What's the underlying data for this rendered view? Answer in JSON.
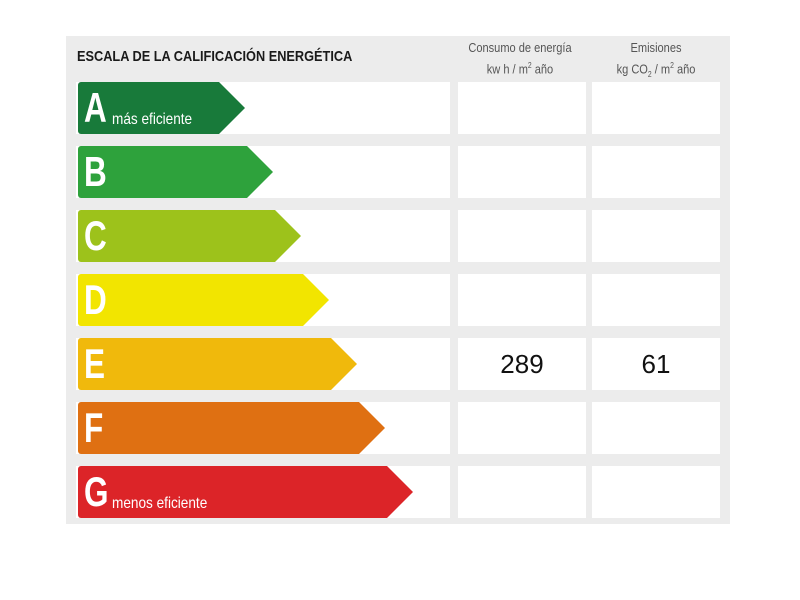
{
  "title": "ESCALA DE LA CALIFICACIÓN ENERGÉTICA",
  "columns": [
    {
      "line1": "Consumo de energía",
      "line2_pre": "kw h / m",
      "line2_sup": "2",
      "line2_post": " año"
    },
    {
      "line1": "Emisiones",
      "line2_pre": "kg CO",
      "line2_sub": "2",
      "line2_mid": " / m",
      "line2_sup": "2",
      "line2_post": " año"
    }
  ],
  "ratings": [
    {
      "letter": "A",
      "label": "más eficiente",
      "color": "#187a3a",
      "consumo": "",
      "emisiones": ""
    },
    {
      "letter": "B",
      "label": "",
      "color": "#2ea23c",
      "consumo": "",
      "emisiones": ""
    },
    {
      "letter": "C",
      "label": "",
      "color": "#9dc21b",
      "consumo": "",
      "emisiones": ""
    },
    {
      "letter": "D",
      "label": "",
      "color": "#f2e500",
      "consumo": "",
      "emisiones": ""
    },
    {
      "letter": "E",
      "label": "",
      "color": "#f0b90c",
      "consumo": "289",
      "emisiones": "61"
    },
    {
      "letter": "F",
      "label": "",
      "color": "#df7012",
      "consumo": "",
      "emisiones": ""
    },
    {
      "letter": "G",
      "label": "menos eficiente",
      "color": "#dc2428",
      "consumo": "",
      "emisiones": ""
    }
  ]
}
